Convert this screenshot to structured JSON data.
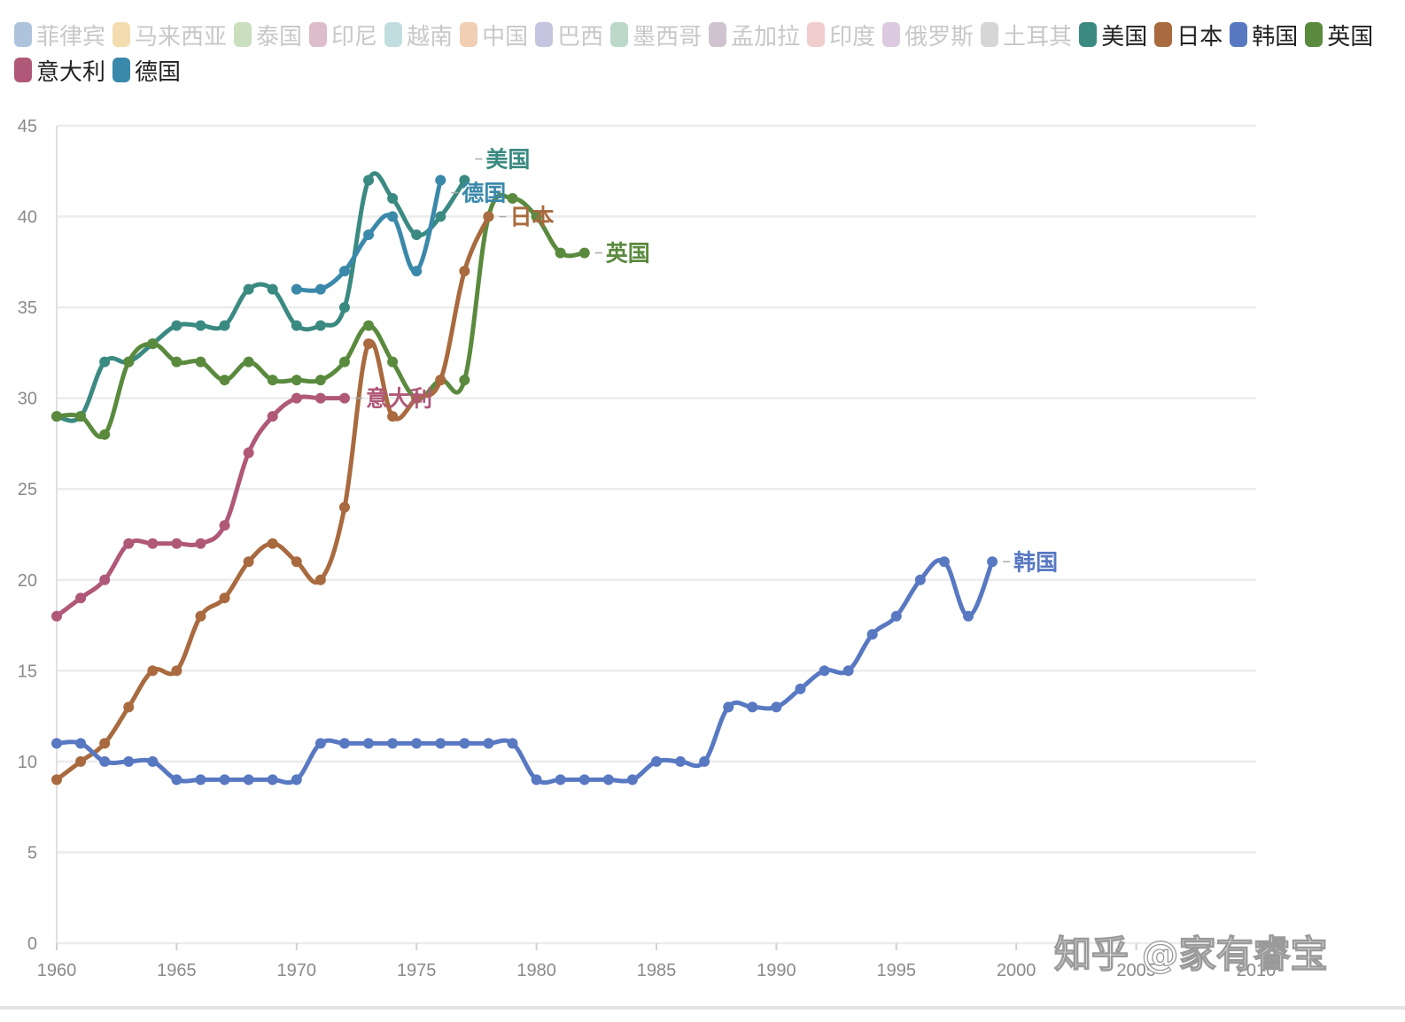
{
  "chart_data": {
    "type": "line",
    "title": "",
    "xlabel": "",
    "ylabel": "",
    "xlim": [
      1960,
      2010
    ],
    "ylim": [
      0,
      45
    ],
    "x_ticks": [
      1960,
      1965,
      1970,
      1975,
      1980,
      1985,
      1990,
      1995,
      2000,
      2005,
      2010
    ],
    "y_ticks": [
      0,
      5,
      10,
      15,
      20,
      25,
      30,
      35,
      40,
      45
    ],
    "grid": "horizontal",
    "legend_position": "top",
    "legend": [
      {
        "name": "菲律宾",
        "color": "#aec4dc",
        "active": false
      },
      {
        "name": "马来西亚",
        "color": "#f3ddb0",
        "active": false
      },
      {
        "name": "泰国",
        "color": "#c9dfbd",
        "active": false
      },
      {
        "name": "印尼",
        "color": "#ddbccb",
        "active": false
      },
      {
        "name": "越南",
        "color": "#c2dde0",
        "active": false
      },
      {
        "name": "中国",
        "color": "#f0cfb5",
        "active": false
      },
      {
        "name": "巴西",
        "color": "#c6c4de",
        "active": false
      },
      {
        "name": "墨西哥",
        "color": "#bcd8c9",
        "active": false
      },
      {
        "name": "孟加拉",
        "color": "#cfc3cf",
        "active": false
      },
      {
        "name": "印度",
        "color": "#f0cdcc",
        "active": false
      },
      {
        "name": "俄罗斯",
        "color": "#dccbe0",
        "active": false
      },
      {
        "name": "土耳其",
        "color": "#d6d6d6",
        "active": false
      },
      {
        "name": "美国",
        "color": "#3b8a82",
        "active": true
      },
      {
        "name": "日本",
        "color": "#a86a3e",
        "active": true
      },
      {
        "name": "韩国",
        "color": "#5878c2",
        "active": true
      },
      {
        "name": "英国",
        "color": "#5a8a3e",
        "active": true
      },
      {
        "name": "意大利",
        "color": "#b05878",
        "active": true
      },
      {
        "name": "德国",
        "color": "#3a88aa",
        "active": true
      }
    ],
    "series": [
      {
        "name": "美国",
        "color": "#3b8a82",
        "end_label": "美国",
        "points": [
          [
            1960,
            29
          ],
          [
            1961,
            29
          ],
          [
            1962,
            32
          ],
          [
            1963,
            32
          ],
          [
            1964,
            33
          ],
          [
            1965,
            34
          ],
          [
            1966,
            34
          ],
          [
            1967,
            34
          ],
          [
            1968,
            36
          ],
          [
            1969,
            36
          ],
          [
            1970,
            34
          ],
          [
            1971,
            34
          ],
          [
            1972,
            35
          ],
          [
            1973,
            42
          ],
          [
            1974,
            41
          ],
          [
            1975,
            39
          ],
          [
            1976,
            40
          ],
          [
            1977,
            42
          ]
        ]
      },
      {
        "name": "英国",
        "color": "#5a8a3e",
        "end_label": "英国",
        "points": [
          [
            1960,
            29
          ],
          [
            1961,
            29
          ],
          [
            1962,
            28
          ],
          [
            1963,
            32
          ],
          [
            1964,
            33
          ],
          [
            1965,
            32
          ],
          [
            1966,
            32
          ],
          [
            1967,
            31
          ],
          [
            1968,
            32
          ],
          [
            1969,
            31
          ],
          [
            1970,
            31
          ],
          [
            1971,
            31
          ],
          [
            1972,
            32
          ],
          [
            1973,
            34
          ],
          [
            1974,
            32
          ],
          [
            1975,
            30
          ],
          [
            1976,
            31
          ],
          [
            1977,
            31
          ],
          [
            1978,
            40
          ],
          [
            1979,
            41
          ],
          [
            1980,
            40
          ],
          [
            1981,
            38
          ],
          [
            1982,
            38
          ]
        ]
      },
      {
        "name": "日本",
        "color": "#a86a3e",
        "end_label": "日本",
        "points": [
          [
            1960,
            9
          ],
          [
            1961,
            10
          ],
          [
            1962,
            11
          ],
          [
            1963,
            13
          ],
          [
            1964,
            15
          ],
          [
            1965,
            15
          ],
          [
            1966,
            18
          ],
          [
            1967,
            19
          ],
          [
            1968,
            21
          ],
          [
            1969,
            22
          ],
          [
            1970,
            21
          ],
          [
            1971,
            20
          ],
          [
            1972,
            24
          ],
          [
            1973,
            33
          ],
          [
            1974,
            29
          ],
          [
            1975,
            30
          ],
          [
            1976,
            31
          ],
          [
            1977,
            37
          ],
          [
            1978,
            40
          ]
        ]
      },
      {
        "name": "意大利",
        "color": "#b05878",
        "end_label": "意大利",
        "points": [
          [
            1960,
            18
          ],
          [
            1961,
            19
          ],
          [
            1962,
            20
          ],
          [
            1963,
            22
          ],
          [
            1964,
            22
          ],
          [
            1965,
            22
          ],
          [
            1966,
            22
          ],
          [
            1967,
            23
          ],
          [
            1968,
            27
          ],
          [
            1969,
            29
          ],
          [
            1970,
            30
          ],
          [
            1971,
            30
          ],
          [
            1972,
            30
          ]
        ]
      },
      {
        "name": "德国",
        "color": "#3a88aa",
        "end_label": "德国",
        "points": [
          [
            1970,
            36
          ],
          [
            1971,
            36
          ],
          [
            1972,
            37
          ],
          [
            1973,
            39
          ],
          [
            1974,
            40
          ],
          [
            1975,
            37
          ],
          [
            1976,
            42
          ]
        ]
      },
      {
        "name": "韩国",
        "color": "#5878c2",
        "end_label": "韩国",
        "points": [
          [
            1960,
            11
          ],
          [
            1961,
            11
          ],
          [
            1962,
            10
          ],
          [
            1963,
            10
          ],
          [
            1964,
            10
          ],
          [
            1965,
            9
          ],
          [
            1966,
            9
          ],
          [
            1967,
            9
          ],
          [
            1968,
            9
          ],
          [
            1969,
            9
          ],
          [
            1970,
            9
          ],
          [
            1971,
            11
          ],
          [
            1972,
            11
          ],
          [
            1973,
            11
          ],
          [
            1974,
            11
          ],
          [
            1975,
            11
          ],
          [
            1976,
            11
          ],
          [
            1977,
            11
          ],
          [
            1978,
            11
          ],
          [
            1979,
            11
          ],
          [
            1980,
            9
          ],
          [
            1981,
            9
          ],
          [
            1982,
            9
          ],
          [
            1983,
            9
          ],
          [
            1984,
            9
          ],
          [
            1985,
            10
          ],
          [
            1986,
            10
          ],
          [
            1987,
            10
          ],
          [
            1988,
            13
          ],
          [
            1989,
            13
          ],
          [
            1990,
            13
          ],
          [
            1991,
            14
          ],
          [
            1992,
            15
          ],
          [
            1993,
            15
          ],
          [
            1994,
            17
          ],
          [
            1995,
            18
          ],
          [
            1996,
            20
          ],
          [
            1997,
            21
          ],
          [
            1998,
            18
          ],
          [
            1999,
            21
          ]
        ]
      }
    ]
  },
  "watermark": "知乎 @家有睿宝"
}
